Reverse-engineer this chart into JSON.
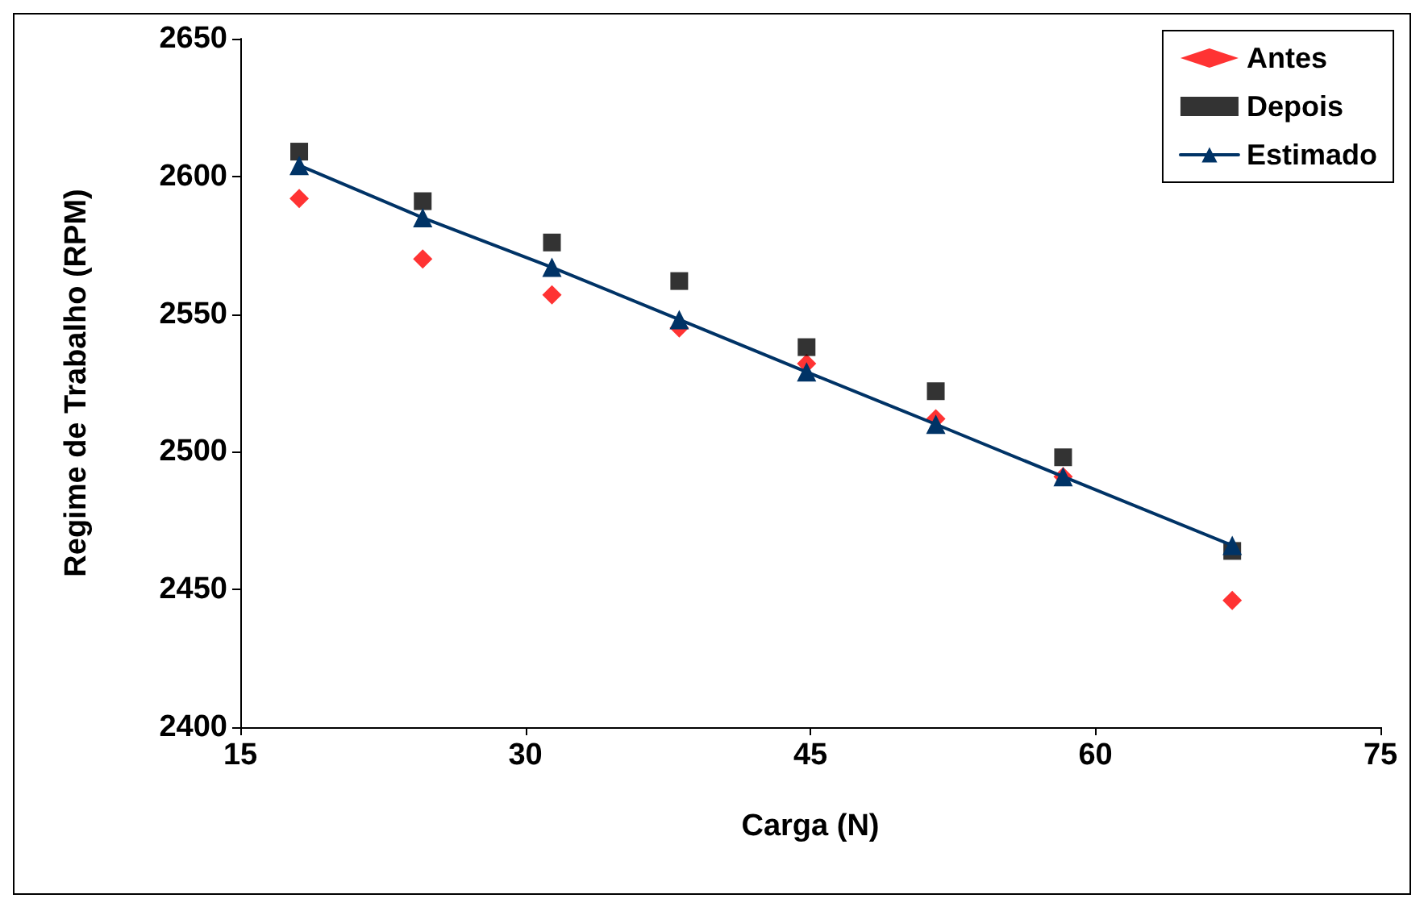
{
  "chart_data": {
    "type": "scatter",
    "xlabel": "Carga (N)",
    "ylabel": "Regime de Trabalho (RPM)",
    "x": [
      18.1,
      24.6,
      31.4,
      38.1,
      44.8,
      51.6,
      58.3,
      67.2
    ],
    "series": [
      {
        "name": "Antes",
        "marker": "diamond",
        "color": "#ff0000",
        "values": [
          2592,
          2570,
          2557,
          2545,
          2532,
          2512,
          2491,
          2446
        ]
      },
      {
        "name": "Depois",
        "marker": "square",
        "color": "#000000",
        "values": [
          2609,
          2591,
          2576,
          2562,
          2538,
          2522,
          2498,
          2464
        ]
      },
      {
        "name": "Estimado",
        "type": "line",
        "marker": "triangle",
        "line_style": "solid",
        "color": "#003366",
        "values": [
          2604,
          2585,
          2567,
          2548,
          2529,
          2510,
          2491,
          2466
        ]
      }
    ],
    "xlim": [
      15,
      75
    ],
    "xticks": [
      15,
      30,
      45,
      60,
      75
    ],
    "ylim": [
      2400,
      2650
    ],
    "yticks": [
      2400,
      2450,
      2500,
      2550,
      2600,
      2650
    ],
    "grid": false,
    "legend": "top right"
  }
}
